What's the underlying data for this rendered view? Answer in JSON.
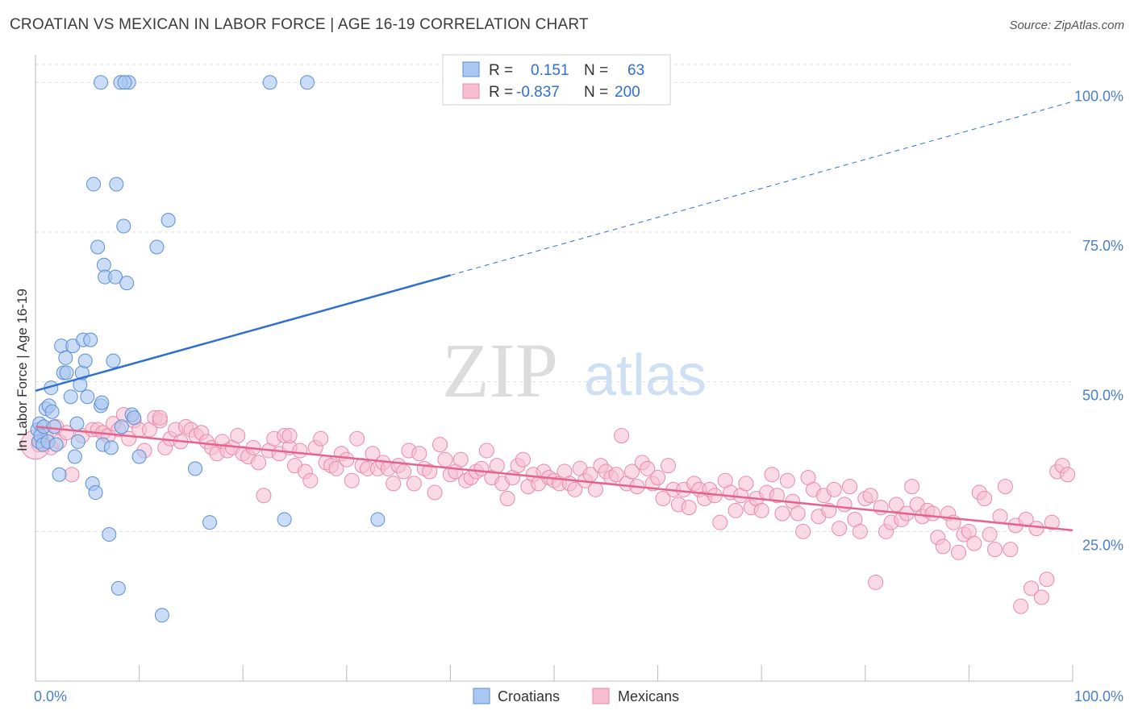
{
  "title": "CROATIAN VS MEXICAN IN LABOR FORCE | AGE 16-19 CORRELATION CHART",
  "source": "Source: ZipAtlas.com",
  "watermark": {
    "zip": "ZIP",
    "atlas": "atlas"
  },
  "colors": {
    "croatian_fill": "#a9c7f0",
    "croatian_stroke": "#5b8fd6",
    "croatian_line": "#2f6fce",
    "mexican_fill": "#f6bdd0",
    "mexican_stroke": "#e88aab",
    "mexican_line": "#e4648f",
    "tick_label": "#4a7fc9",
    "grid": "#dddddd"
  },
  "legend": {
    "items": [
      {
        "r_label": "R =",
        "r_value": "0.151",
        "n_label": "N =",
        "n_value": "63"
      },
      {
        "r_label": "R =",
        "r_value": "-0.837",
        "n_label": "N =",
        "n_value": "200"
      }
    ]
  },
  "bottom_legend": {
    "croatians": "Croatians",
    "mexicans": "Mexicans"
  },
  "chart_data": {
    "type": "scatter",
    "xlabel": "",
    "ylabel": "In Labor Force | Age 16-19",
    "xlim": [
      0,
      100
    ],
    "ylim": [
      0,
      103
    ],
    "x_tick_labels": [
      "0.0%",
      "100.0%"
    ],
    "y_ticks": [
      25,
      50,
      75,
      100
    ],
    "y_tick_labels": [
      "25.0%",
      "50.0%",
      "75.0%",
      "100.0%"
    ],
    "grid": true,
    "legend_position": "top-center",
    "series": [
      {
        "name": "Croatians",
        "trend": {
          "x_solid": [
            0,
            40
          ],
          "y_solid": [
            48.5,
            67.8
          ],
          "x_dashed": [
            40,
            100
          ],
          "y_dashed": [
            67.8,
            96.8
          ]
        },
        "points": [
          [
            0.2,
            42
          ],
          [
            0.3,
            40
          ],
          [
            0.4,
            43
          ],
          [
            0.5,
            41
          ],
          [
            0.7,
            39.5
          ],
          [
            0.8,
            42.5
          ],
          [
            1,
            45.5
          ],
          [
            1.2,
            40
          ],
          [
            1.3,
            46
          ],
          [
            1.5,
            49
          ],
          [
            1.6,
            45
          ],
          [
            1.8,
            42.5
          ],
          [
            2,
            39.5
          ],
          [
            2.3,
            34.5
          ],
          [
            2.5,
            56
          ],
          [
            2.7,
            51.5
          ],
          [
            2.9,
            54
          ],
          [
            3,
            51.5
          ],
          [
            3.4,
            47.5
          ],
          [
            3.6,
            56
          ],
          [
            3.8,
            37.5
          ],
          [
            4,
            43
          ],
          [
            4.1,
            40
          ],
          [
            4.3,
            49.5
          ],
          [
            4.5,
            51.5
          ],
          [
            4.6,
            57
          ],
          [
            4.8,
            53.5
          ],
          [
            5,
            47.5
          ],
          [
            5.3,
            57
          ],
          [
            5.5,
            33
          ],
          [
            5.6,
            83
          ],
          [
            5.8,
            31.5
          ],
          [
            6,
            72.5
          ],
          [
            6.3,
            46
          ],
          [
            6.4,
            46.5
          ],
          [
            6.5,
            39.5
          ],
          [
            6.6,
            69.5
          ],
          [
            6.7,
            67.5
          ],
          [
            7.1,
            24.5
          ],
          [
            7.3,
            39
          ],
          [
            7.5,
            53.5
          ],
          [
            7.7,
            67.5
          ],
          [
            7.8,
            83
          ],
          [
            8,
            15.5
          ],
          [
            8.3,
            42.5
          ],
          [
            8.5,
            76
          ],
          [
            8.8,
            66.5
          ],
          [
            9,
            100
          ],
          [
            9.3,
            44.5
          ],
          [
            9.5,
            44
          ],
          [
            10,
            37.5
          ],
          [
            11.7,
            72.5
          ],
          [
            12.2,
            11
          ],
          [
            12.8,
            77
          ],
          [
            15.4,
            35.5
          ],
          [
            16.8,
            26.5
          ],
          [
            6.3,
            100
          ],
          [
            8.2,
            100
          ],
          [
            8.6,
            100
          ],
          [
            22.6,
            100
          ],
          [
            24,
            27
          ],
          [
            26.2,
            100
          ],
          [
            33,
            27
          ]
        ]
      },
      {
        "name": "Mexicans",
        "trend": {
          "x_solid": [
            0,
            100
          ],
          "y_solid": [
            42.5,
            25.2
          ]
        },
        "points": [
          [
            0.3,
            39.5
          ],
          [
            0.6,
            40
          ],
          [
            1,
            41
          ],
          [
            1.5,
            39
          ],
          [
            2,
            42.5
          ],
          [
            2.3,
            40
          ],
          [
            3,
            41.5
          ],
          [
            3.5,
            34.5
          ],
          [
            4.5,
            41
          ],
          [
            5.5,
            42
          ],
          [
            6,
            42
          ],
          [
            6.5,
            41.5
          ],
          [
            7,
            41
          ],
          [
            7.5,
            43
          ],
          [
            8,
            42
          ],
          [
            8.5,
            44.5
          ],
          [
            9,
            40.5
          ],
          [
            9.5,
            43.5
          ],
          [
            10,
            42
          ],
          [
            10.5,
            38.5
          ],
          [
            11,
            42
          ],
          [
            11.5,
            44
          ],
          [
            12,
            43.5
          ],
          [
            12.5,
            39
          ],
          [
            13,
            40.5
          ],
          [
            13.5,
            42
          ],
          [
            14,
            40
          ],
          [
            14.5,
            42.5
          ],
          [
            15,
            42
          ],
          [
            15.5,
            41
          ],
          [
            16,
            41.5
          ],
          [
            16.5,
            40
          ],
          [
            17,
            39
          ],
          [
            17.5,
            38
          ],
          [
            18,
            40
          ],
          [
            18.5,
            38.5
          ],
          [
            19,
            39
          ],
          [
            19.5,
            41
          ],
          [
            20,
            38
          ],
          [
            20.5,
            37.5
          ],
          [
            21,
            39
          ],
          [
            21.5,
            36.5
          ],
          [
            22,
            31
          ],
          [
            22.5,
            38.5
          ],
          [
            23,
            40.5
          ],
          [
            23.5,
            38
          ],
          [
            24,
            41
          ],
          [
            24.5,
            39
          ],
          [
            25,
            36
          ],
          [
            25.5,
            38.5
          ],
          [
            26,
            35
          ],
          [
            26.5,
            33.5
          ],
          [
            27,
            39
          ],
          [
            27.5,
            40.5
          ],
          [
            28,
            36.5
          ],
          [
            28.5,
            36
          ],
          [
            29,
            35.5
          ],
          [
            29.5,
            38
          ],
          [
            30,
            37
          ],
          [
            30.5,
            33.5
          ],
          [
            31,
            40.5
          ],
          [
            31.5,
            36
          ],
          [
            32,
            35.5
          ],
          [
            32.5,
            38
          ],
          [
            33,
            35.5
          ],
          [
            33.5,
            36.5
          ],
          [
            34,
            35.5
          ],
          [
            34.5,
            33
          ],
          [
            35,
            36
          ],
          [
            35.5,
            35
          ],
          [
            36,
            38.5
          ],
          [
            36.5,
            33
          ],
          [
            37,
            38
          ],
          [
            37.5,
            35.5
          ],
          [
            38,
            35
          ],
          [
            38.5,
            31.5
          ],
          [
            39,
            39.5
          ],
          [
            39.5,
            37
          ],
          [
            40,
            34.5
          ],
          [
            40.5,
            35
          ],
          [
            41,
            37
          ],
          [
            41.5,
            33.5
          ],
          [
            42,
            34
          ],
          [
            42.5,
            35
          ],
          [
            43,
            35.5
          ],
          [
            43.5,
            38.5
          ],
          [
            44,
            34
          ],
          [
            44.5,
            36
          ],
          [
            45,
            33
          ],
          [
            45.5,
            30.5
          ],
          [
            46,
            34
          ],
          [
            46.5,
            36
          ],
          [
            47,
            37
          ],
          [
            47.5,
            32.5
          ],
          [
            48,
            34.5
          ],
          [
            48.5,
            33
          ],
          [
            49,
            35
          ],
          [
            49.5,
            34
          ],
          [
            50,
            33.5
          ],
          [
            50.5,
            33
          ],
          [
            51,
            35
          ],
          [
            51.5,
            33
          ],
          [
            52,
            32
          ],
          [
            52.5,
            35.5
          ],
          [
            53,
            33.5
          ],
          [
            53.5,
            34.5
          ],
          [
            54,
            32
          ],
          [
            54.5,
            36
          ],
          [
            55,
            35
          ],
          [
            55.5,
            34
          ],
          [
            56,
            34.5
          ],
          [
            56.5,
            41
          ],
          [
            57,
            33
          ],
          [
            57.5,
            35
          ],
          [
            58,
            32.5
          ],
          [
            58.5,
            36.5
          ],
          [
            59,
            35.5
          ],
          [
            59.5,
            33
          ],
          [
            60,
            34
          ],
          [
            60.5,
            30.5
          ],
          [
            61,
            36
          ],
          [
            61.5,
            32
          ],
          [
            62,
            29.5
          ],
          [
            62.5,
            32
          ],
          [
            63,
            29
          ],
          [
            63.5,
            33
          ],
          [
            64,
            32
          ],
          [
            64.5,
            30.5
          ],
          [
            65,
            32
          ],
          [
            65.5,
            31
          ],
          [
            66,
            26.5
          ],
          [
            66.5,
            33.5
          ],
          [
            67,
            31.5
          ],
          [
            67.5,
            28.5
          ],
          [
            68,
            31
          ],
          [
            68.5,
            33
          ],
          [
            69,
            29
          ],
          [
            69.5,
            30.5
          ],
          [
            70,
            28.5
          ],
          [
            70.5,
            31.5
          ],
          [
            71,
            34.5
          ],
          [
            71.5,
            31
          ],
          [
            72,
            28
          ],
          [
            72.5,
            33.5
          ],
          [
            73,
            30
          ],
          [
            73.5,
            28
          ],
          [
            74,
            25
          ],
          [
            74.5,
            34
          ],
          [
            75,
            32
          ],
          [
            75.5,
            27.5
          ],
          [
            76,
            31
          ],
          [
            76.5,
            28.5
          ],
          [
            77,
            32
          ],
          [
            77.5,
            25.5
          ],
          [
            78,
            29.5
          ],
          [
            78.5,
            32.5
          ],
          [
            79,
            27
          ],
          [
            79.5,
            25
          ],
          [
            80,
            30.5
          ],
          [
            80.5,
            31
          ],
          [
            81,
            16.5
          ],
          [
            81.5,
            29
          ],
          [
            82,
            25
          ],
          [
            82.5,
            26.5
          ],
          [
            83,
            29.5
          ],
          [
            83.5,
            27
          ],
          [
            84,
            28
          ],
          [
            84.5,
            32.5
          ],
          [
            85,
            29.5
          ],
          [
            85.5,
            27.5
          ],
          [
            86,
            28.5
          ],
          [
            86.5,
            28
          ],
          [
            87,
            24
          ],
          [
            87.5,
            22.5
          ],
          [
            88,
            28
          ],
          [
            88.5,
            26.5
          ],
          [
            89,
            21.5
          ],
          [
            89.5,
            24.5
          ],
          [
            90,
            25
          ],
          [
            90.5,
            23
          ],
          [
            91,
            31.5
          ],
          [
            91.5,
            30.5
          ],
          [
            92,
            24.5
          ],
          [
            92.5,
            22
          ],
          [
            93,
            27.5
          ],
          [
            93.5,
            32.5
          ],
          [
            94,
            22
          ],
          [
            94.5,
            26
          ],
          [
            95,
            12.5
          ],
          [
            95.5,
            27
          ],
          [
            96,
            15.5
          ],
          [
            96.5,
            25.5
          ],
          [
            97,
            14
          ],
          [
            97.5,
            17
          ],
          [
            98,
            26.5
          ],
          [
            98.5,
            35
          ],
          [
            99,
            36
          ],
          [
            99.5,
            34.5
          ],
          [
            12,
            44
          ],
          [
            24.5,
            41
          ]
        ]
      }
    ]
  }
}
